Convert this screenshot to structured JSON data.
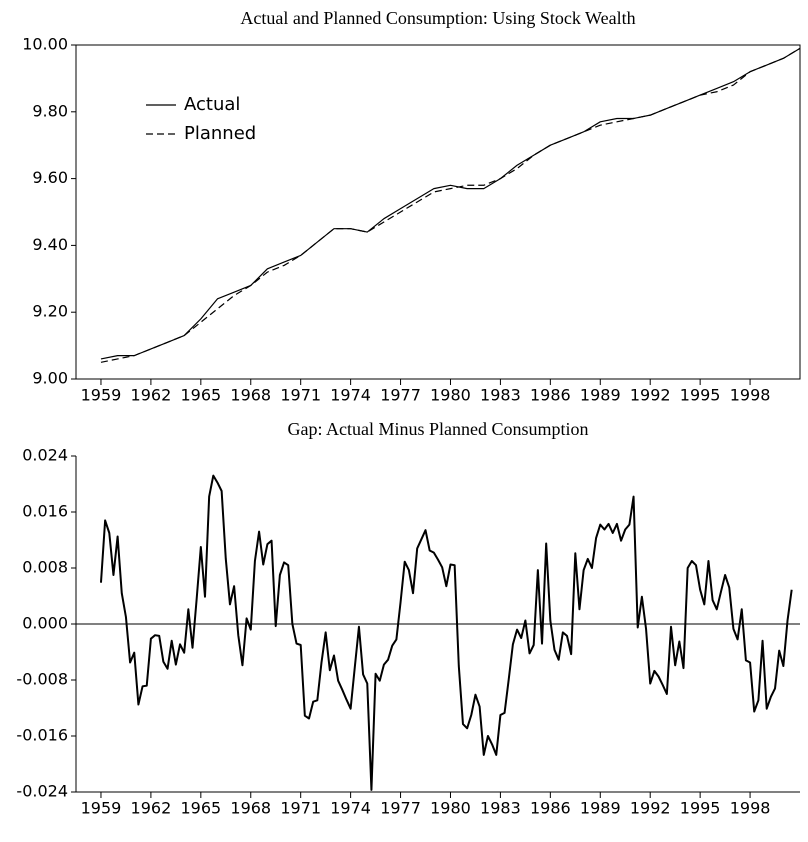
{
  "chart_data": [
    {
      "type": "line",
      "title": "Actual and Planned Consumption: Using Stock Wealth",
      "x": [
        1959,
        1960,
        1961,
        1962,
        1963,
        1964,
        1965,
        1966,
        1967,
        1968,
        1969,
        1970,
        1971,
        1972,
        1973,
        1974,
        1975,
        1976,
        1977,
        1978,
        1979,
        1980,
        1981,
        1982,
        1983,
        1984,
        1985,
        1986,
        1987,
        1988,
        1989,
        1990,
        1991,
        1992,
        1993,
        1994,
        1995,
        1996,
        1997,
        1998,
        1999,
        2000,
        2001
      ],
      "series": [
        {
          "name": "Actual",
          "color": "#000000",
          "style": "solid",
          "values": [
            9.06,
            9.07,
            9.07,
            9.09,
            9.11,
            9.13,
            9.18,
            9.24,
            9.26,
            9.28,
            9.33,
            9.35,
            9.37,
            9.41,
            9.45,
            9.45,
            9.44,
            9.48,
            9.51,
            9.54,
            9.57,
            9.58,
            9.57,
            9.57,
            9.6,
            9.64,
            9.67,
            9.7,
            9.72,
            9.74,
            9.77,
            9.78,
            9.78,
            9.79,
            9.81,
            9.83,
            9.85,
            9.87,
            9.89,
            9.92,
            9.94,
            9.96,
            9.99
          ]
        },
        {
          "name": "Planned",
          "color": "#000000",
          "style": "dashed",
          "values": [
            9.05,
            9.06,
            9.07,
            9.09,
            9.11,
            9.13,
            9.17,
            9.21,
            9.25,
            9.28,
            9.32,
            9.34,
            9.37,
            9.41,
            9.45,
            9.45,
            9.44,
            9.47,
            9.5,
            9.53,
            9.56,
            9.57,
            9.58,
            9.58,
            9.6,
            9.63,
            9.67,
            9.7,
            9.72,
            9.74,
            9.76,
            9.77,
            9.78,
            9.79,
            9.81,
            9.83,
            9.85,
            9.86,
            9.88,
            9.92,
            9.94,
            9.96,
            9.99
          ]
        }
      ],
      "xlim": [
        1957.5,
        2001
      ],
      "xticks": [
        1959,
        1962,
        1965,
        1968,
        1971,
        1974,
        1977,
        1980,
        1983,
        1986,
        1989,
        1992,
        1995,
        1998
      ],
      "ylim": [
        9,
        10
      ],
      "yticks": [
        {
          "value": 9,
          "label": "9.00"
        },
        {
          "value": 9.2,
          "label": "9.20"
        },
        {
          "value": 9.4,
          "label": "9.40"
        },
        {
          "value": 9.6,
          "label": "9.60"
        },
        {
          "value": 9.8,
          "label": "9.80"
        },
        {
          "value": 10,
          "label": "10.00"
        }
      ],
      "frame": "box",
      "legend": "upper left",
      "grid": false
    },
    {
      "type": "line",
      "title": "Gap: Actual Minus Planned Consumption",
      "x": [
        1959,
        1959.25,
        1959.5,
        1959.75,
        1960,
        1960.25,
        1960.5,
        1960.75,
        1961,
        1961.25,
        1961.5,
        1961.75,
        1962,
        1962.25,
        1962.5,
        1962.75,
        1963,
        1963.25,
        1963.5,
        1963.75,
        1964,
        1964.25,
        1964.5,
        1964.75,
        1965,
        1965.25,
        1965.5,
        1965.75,
        1966,
        1966.25,
        1966.5,
        1966.75,
        1967,
        1967.25,
        1967.5,
        1967.75,
        1968,
        1968.25,
        1968.5,
        1968.75,
        1969,
        1969.25,
        1969.5,
        1969.75,
        1970,
        1970.25,
        1970.5,
        1970.75,
        1971,
        1971.25,
        1971.5,
        1971.75,
        1972,
        1972.25,
        1972.5,
        1972.75,
        1973,
        1973.25,
        1973.5,
        1973.75,
        1974,
        1974.25,
        1974.5,
        1974.75,
        1975,
        1975.25,
        1975.5,
        1975.75,
        1976,
        1976.25,
        1976.5,
        1976.75,
        1977,
        1977.25,
        1977.5,
        1977.75,
        1978,
        1978.25,
        1978.5,
        1978.75,
        1979,
        1979.25,
        1979.5,
        1979.75,
        1980,
        1980.25,
        1980.5,
        1980.75,
        1981,
        1981.25,
        1981.5,
        1981.75,
        1982,
        1982.25,
        1982.5,
        1982.75,
        1983,
        1983.25,
        1983.5,
        1983.75,
        1984,
        1984.25,
        1984.5,
        1984.75,
        1985,
        1985.25,
        1985.5,
        1985.75,
        1986,
        1986.25,
        1986.5,
        1986.75,
        1987,
        1987.25,
        1987.5,
        1987.75,
        1988,
        1988.25,
        1988.5,
        1988.75,
        1989,
        1989.25,
        1989.5,
        1989.75,
        1990,
        1990.25,
        1990.5,
        1990.75,
        1991,
        1991.25,
        1991.5,
        1991.75,
        1992,
        1992.25,
        1992.5,
        1992.75,
        1993,
        1993.25,
        1993.5,
        1993.75,
        1994,
        1994.25,
        1994.5,
        1994.75,
        1995,
        1995.25,
        1995.5,
        1995.75,
        1996,
        1996.25,
        1996.5,
        1996.75,
        1997,
        1997.25,
        1997.5,
        1997.75,
        1998,
        1998.25,
        1998.5,
        1998.75,
        1999,
        1999.25,
        1999.5,
        1999.75,
        2000,
        2000.25,
        2000.5
      ],
      "values": [
        0.0059,
        0.0148,
        0.013,
        0.007,
        0.0125,
        0.0044,
        0.001,
        -0.0055,
        -0.0041,
        -0.0115,
        -0.0089,
        -0.0088,
        -0.0021,
        -0.0016,
        -0.0017,
        -0.0054,
        -0.0064,
        -0.0024,
        -0.0058,
        -0.0029,
        -0.0041,
        0.0021,
        -0.0034,
        0.0036,
        0.011,
        0.0039,
        0.0182,
        0.0212,
        0.0202,
        0.019,
        0.0093,
        0.0028,
        0.0054,
        -0.0016,
        -0.0059,
        0.0008,
        -0.0008,
        0.009,
        0.0132,
        0.0085,
        0.0114,
        0.0119,
        -0.0003,
        0.007,
        0.0088,
        0.0084,
        0.0,
        -0.0028,
        -0.003,
        -0.0131,
        -0.0135,
        -0.0111,
        -0.0109,
        -0.0055,
        -0.0012,
        -0.0066,
        -0.0045,
        -0.0081,
        -0.0094,
        -0.0108,
        -0.0121,
        -0.0062,
        -0.0004,
        -0.0072,
        -0.0085,
        -0.0237,
        -0.0071,
        -0.0081,
        -0.0058,
        -0.0051,
        -0.0031,
        -0.0022,
        0.0031,
        0.0089,
        0.0077,
        0.0044,
        0.0108,
        0.0121,
        0.0134,
        0.0105,
        0.0102,
        0.0092,
        0.0081,
        0.0054,
        0.0085,
        0.0084,
        -0.006,
        -0.0143,
        -0.0149,
        -0.013,
        -0.0101,
        -0.0118,
        -0.0187,
        -0.016,
        -0.0172,
        -0.0187,
        -0.013,
        -0.0127,
        -0.0079,
        -0.0029,
        -0.0008,
        -0.002,
        0.0005,
        -0.0042,
        -0.003,
        0.0077,
        -0.0028,
        0.0115,
        0.0005,
        -0.0037,
        -0.0051,
        -0.0012,
        -0.0017,
        -0.0043,
        0.0101,
        0.0021,
        0.0077,
        0.0093,
        0.008,
        0.0123,
        0.0142,
        0.0135,
        0.0143,
        0.013,
        0.0143,
        0.0119,
        0.0135,
        0.0142,
        0.0182,
        -0.0005,
        0.0039,
        -0.0007,
        -0.0085,
        -0.0067,
        -0.0075,
        -0.0087,
        -0.01,
        -0.0004,
        -0.0059,
        -0.0025,
        -0.0063,
        0.008,
        0.009,
        0.0084,
        0.0049,
        0.0028,
        0.009,
        0.0034,
        0.0021,
        0.0046,
        0.007,
        0.0052,
        -0.0007,
        -0.0022,
        0.0021,
        -0.0052,
        -0.0055,
        -0.0125,
        -0.0109,
        -0.0024,
        -0.0121,
        -0.0104,
        -0.0092,
        -0.0038,
        -0.006,
        0.0005,
        0.0049
      ],
      "color": "#000000",
      "xlim": [
        1957.5,
        2001
      ],
      "xticks": [
        1959,
        1962,
        1965,
        1968,
        1971,
        1974,
        1977,
        1980,
        1983,
        1986,
        1989,
        1992,
        1995,
        1998
      ],
      "ylim": [
        -0.024,
        0.024
      ],
      "yticks": [
        -0.024,
        -0.016,
        -0.008,
        {
          "value": 0,
          "label": "0.000"
        },
        0.008,
        0.016,
        0.024
      ],
      "frame": "axes",
      "zero_line": true,
      "grid": false
    }
  ]
}
